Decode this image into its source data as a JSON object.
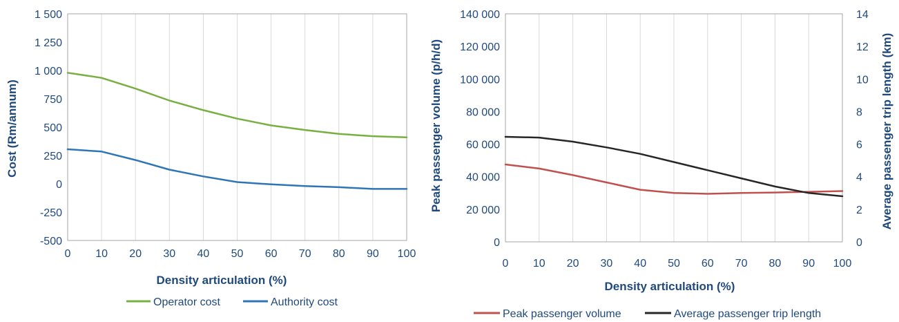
{
  "chart_data": [
    {
      "type": "line",
      "xlabel": "Density articulation (%)",
      "ylabel": "Cost (Rm/annum)",
      "xlim": [
        0,
        100
      ],
      "ylim": [
        -500,
        1500
      ],
      "x_ticks": [
        "0",
        "10",
        "20",
        "30",
        "40",
        "50",
        "60",
        "70",
        "80",
        "90",
        "100"
      ],
      "y_ticks": [
        "1 500",
        "1 250",
        "1 000",
        "750",
        "500",
        "250",
        "0",
        "-250",
        "-500"
      ],
      "grid": "vertical",
      "legend_position": "bottom",
      "x": [
        0,
        10,
        20,
        30,
        40,
        50,
        60,
        70,
        80,
        90,
        100
      ],
      "series": [
        {
          "name": "Operator cost",
          "color": "#77b041",
          "values": [
            980,
            935,
            840,
            735,
            650,
            575,
            515,
            475,
            440,
            420,
            410
          ]
        },
        {
          "name": "Authority cost",
          "color": "#2e75b6",
          "values": [
            305,
            285,
            210,
            125,
            65,
            15,
            -5,
            -20,
            -30,
            -45,
            -45
          ]
        }
      ]
    },
    {
      "type": "line",
      "xlabel": "Density articulation (%)",
      "ylabel": "Peak passenger volume (p/h/d)",
      "y2label": "Average passenger trip length (km)",
      "xlim": [
        0,
        100
      ],
      "ylim": [
        0,
        140000
      ],
      "y2lim": [
        0,
        14
      ],
      "x_ticks": [
        "0",
        "10",
        "20",
        "30",
        "40",
        "50",
        "60",
        "70",
        "80",
        "90",
        "100"
      ],
      "y_ticks": [
        "140 000",
        "120 000",
        "100 000",
        "80 000",
        "60 000",
        "40 000",
        "20 000",
        "0"
      ],
      "y2_ticks": [
        "14",
        "12",
        "10",
        "8",
        "6",
        "4",
        "2",
        "0"
      ],
      "grid": "vertical",
      "legend_position": "bottom",
      "x": [
        0,
        10,
        20,
        30,
        40,
        50,
        60,
        70,
        80,
        90,
        100
      ],
      "series": [
        {
          "name": "Peak passenger volume",
          "axis": "left",
          "color": "#c0504d",
          "values": [
            47500,
            45000,
            41000,
            36500,
            32000,
            30000,
            29500,
            30000,
            30300,
            30700,
            31200
          ]
        },
        {
          "name": "Average passenger trip length",
          "axis": "right",
          "color": "#262626",
          "values": [
            6.45,
            6.4,
            6.15,
            5.8,
            5.4,
            4.9,
            4.4,
            3.9,
            3.4,
            3.0,
            2.8
          ]
        }
      ]
    }
  ]
}
